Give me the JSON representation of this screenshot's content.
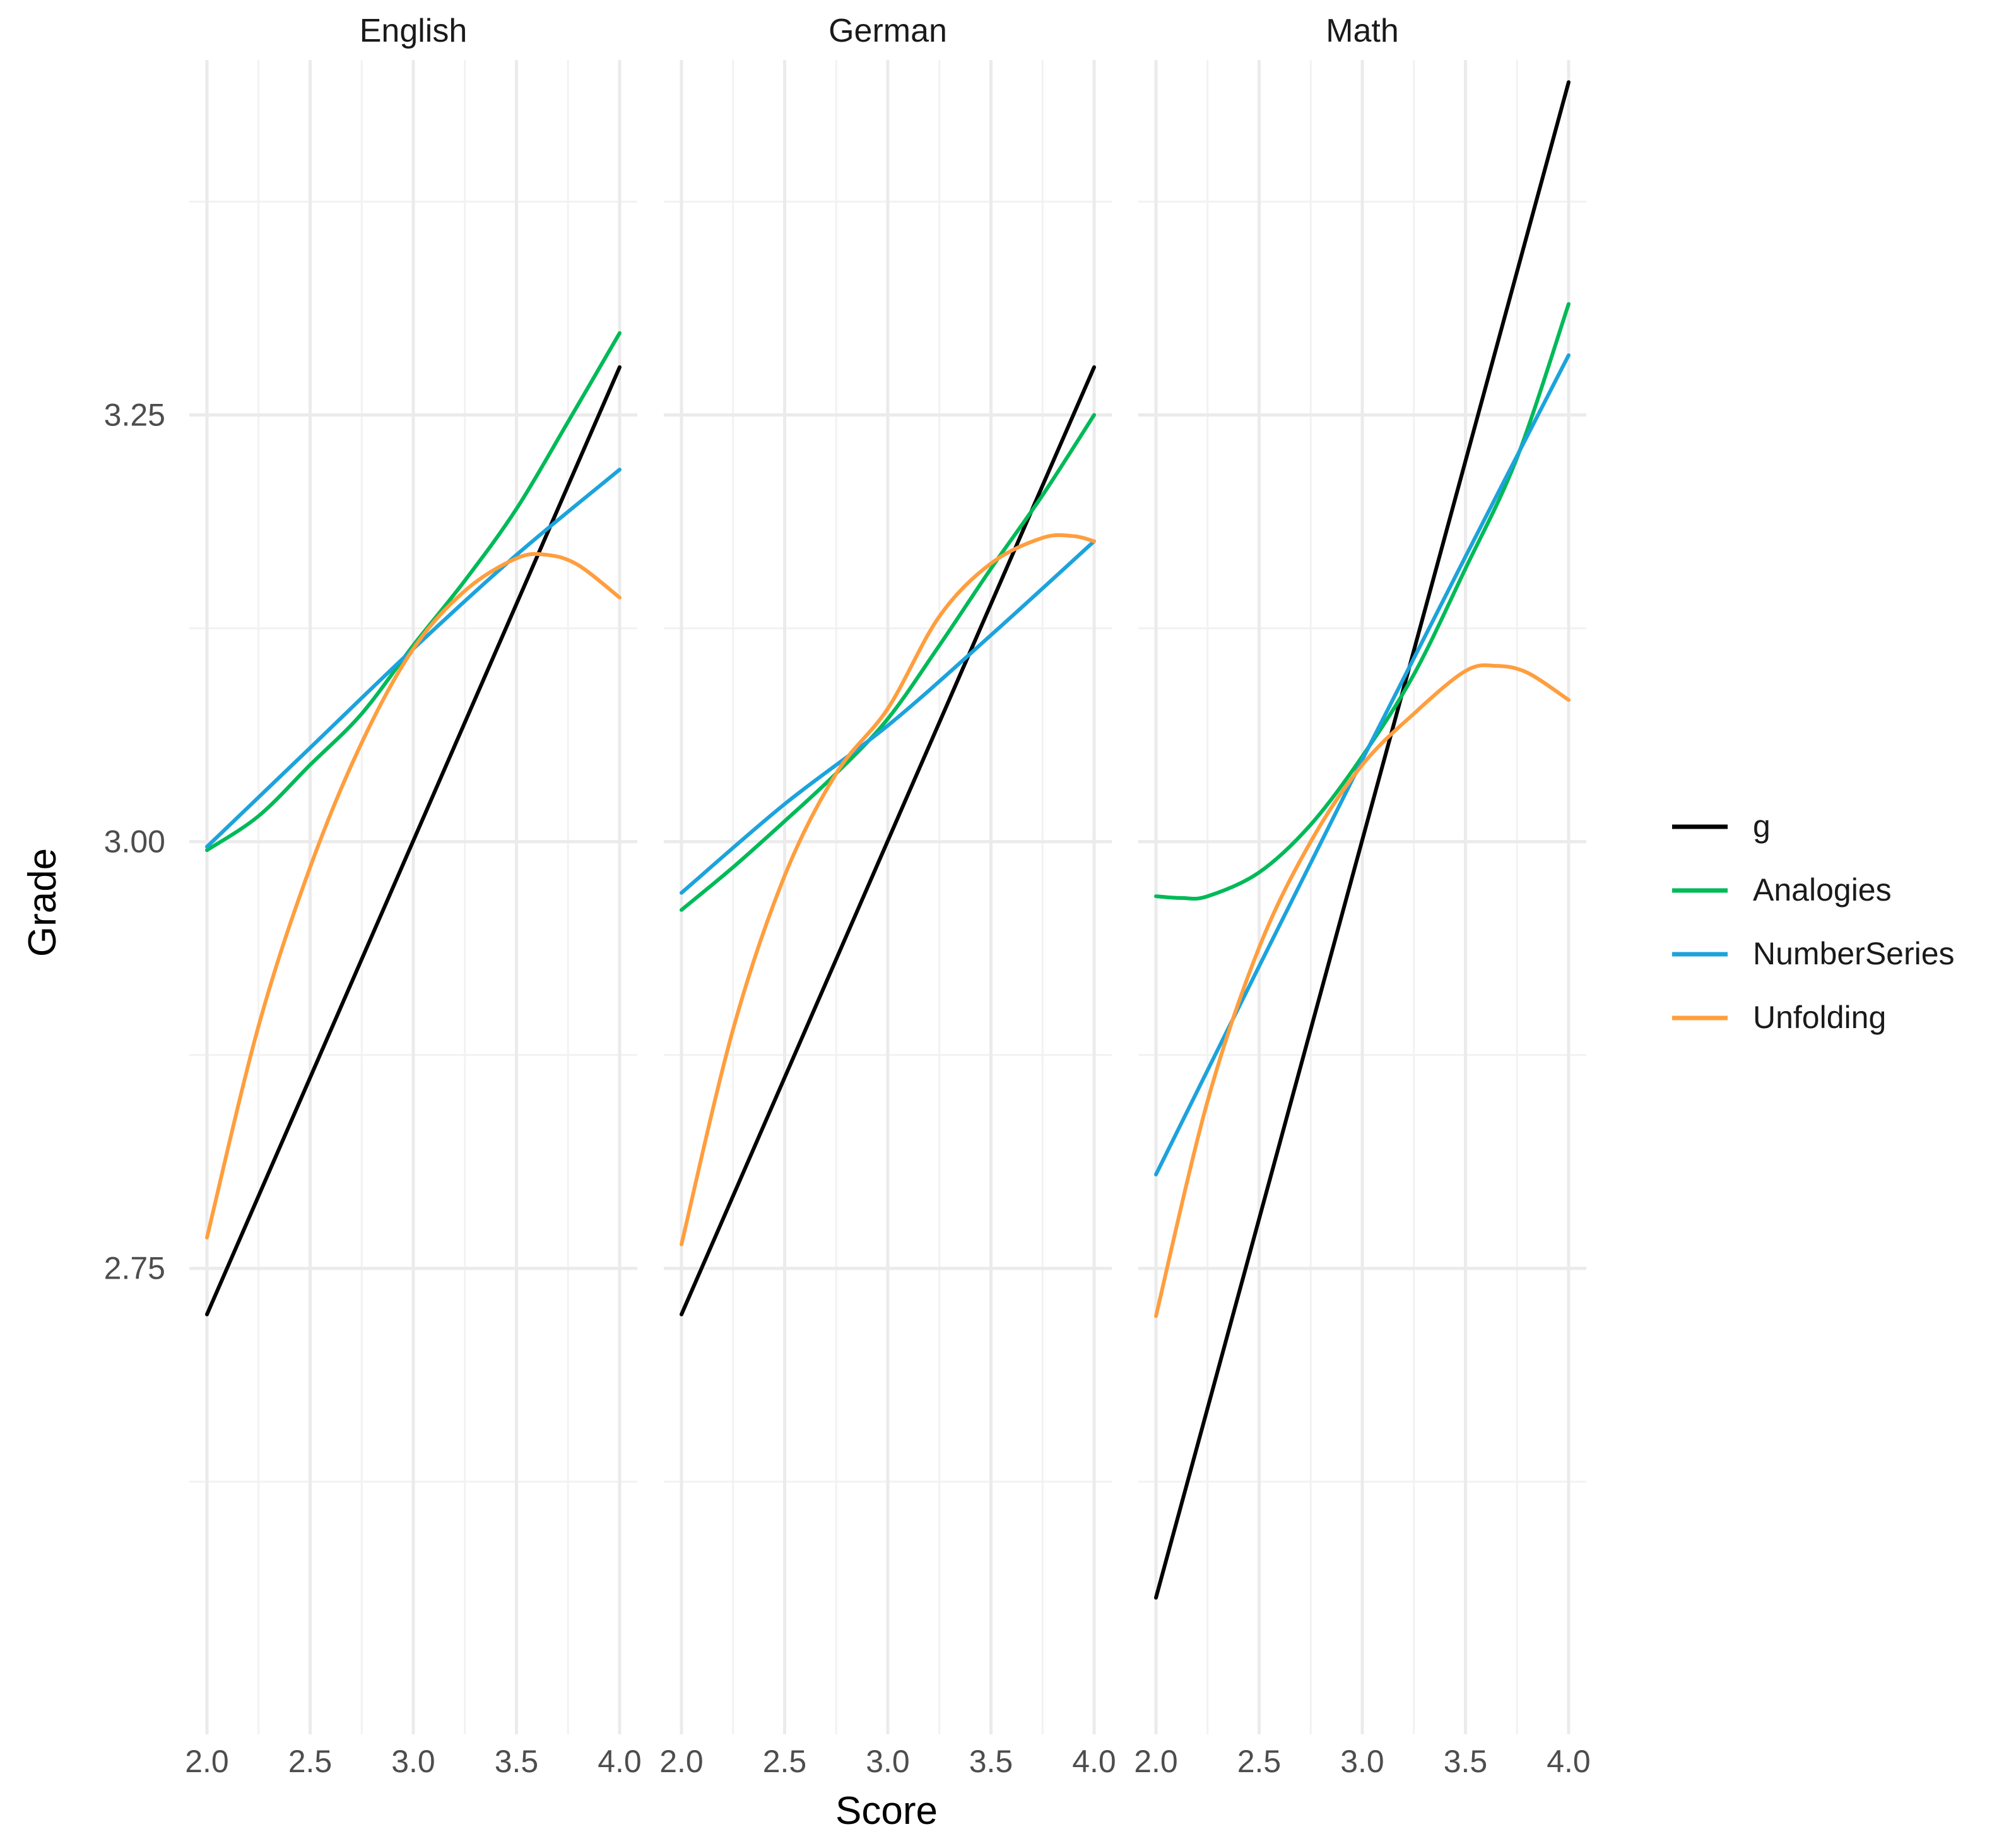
{
  "chart_data": {
    "type": "line",
    "xlabel": "Score",
    "ylabel": "Grade",
    "xlim": [
      2.0,
      4.0
    ],
    "ylim": [
      2.477,
      3.458
    ],
    "x_ticks": [
      "2.0",
      "2.5",
      "3.0",
      "3.5",
      "4.0"
    ],
    "y_ticks": [
      "2.75",
      "3.00",
      "3.25"
    ],
    "y_tick_values": [
      2.75,
      3.0,
      3.25
    ],
    "y_minor_values": [
      2.625,
      2.875,
      3.125,
      3.375
    ],
    "grid": true,
    "legend_position": "right",
    "legend": [
      {
        "name": "g",
        "color": "#000000"
      },
      {
        "name": "Analogies",
        "color": "#00BA58"
      },
      {
        "name": "NumberSeries",
        "color": "#1CA3DC"
      },
      {
        "name": "Unfolding",
        "color": "#FF9E3E"
      }
    ],
    "panels": [
      {
        "title": "English",
        "series": [
          {
            "name": "g",
            "x": [
              2.0,
              4.0
            ],
            "y": [
              2.723,
              3.278
            ]
          },
          {
            "name": "Analogies",
            "x": [
              2.0,
              2.25,
              2.5,
              2.75,
              3.0,
              3.25,
              3.5,
              3.75,
              4.0
            ],
            "y": [
              2.995,
              3.015,
              3.045,
              3.075,
              3.115,
              3.153,
              3.195,
              3.246,
              3.298
            ]
          },
          {
            "name": "NumberSeries",
            "x": [
              2.0,
              2.5,
              3.0,
              3.5,
              4.0
            ],
            "y": [
              2.997,
              3.055,
              3.113,
              3.168,
              3.218
            ]
          },
          {
            "name": "Unfolding",
            "x": [
              2.0,
              2.25,
              2.5,
              2.75,
              3.0,
              3.25,
              3.5,
              3.65,
              3.8,
              4.0
            ],
            "y": [
              2.768,
              2.892,
              2.985,
              3.058,
              3.113,
              3.147,
              3.166,
              3.168,
              3.162,
              3.143
            ]
          }
        ]
      },
      {
        "title": "German",
        "series": [
          {
            "name": "g",
            "x": [
              2.0,
              4.0
            ],
            "y": [
              2.723,
              3.278
            ]
          },
          {
            "name": "Analogies",
            "x": [
              2.0,
              2.25,
              2.5,
              2.75,
              3.0,
              3.25,
              3.5,
              3.75,
              4.0
            ],
            "y": [
              2.96,
              2.985,
              3.012,
              3.04,
              3.072,
              3.115,
              3.16,
              3.203,
              3.25
            ]
          },
          {
            "name": "NumberSeries",
            "x": [
              2.0,
              2.5,
              3.0,
              3.5,
              4.0
            ],
            "y": [
              2.97,
              3.022,
              3.068,
              3.121,
              3.176
            ]
          },
          {
            "name": "Unfolding",
            "x": [
              2.0,
              2.25,
              2.5,
              2.75,
              3.0,
              3.25,
              3.5,
              3.75,
              3.9,
              4.0
            ],
            "y": [
              2.764,
              2.89,
              2.98,
              3.04,
              3.078,
              3.132,
              3.163,
              3.178,
              3.179,
              3.176
            ]
          }
        ]
      },
      {
        "title": "Math",
        "series": [
          {
            "name": "g",
            "x": [
              2.0,
              4.0
            ],
            "y": [
              2.557,
              3.445
            ]
          },
          {
            "name": "Analogies",
            "x": [
              2.0,
              2.125,
              2.25,
              2.5,
              2.75,
              3.0,
              3.25,
              3.5,
              3.75,
              4.0
            ],
            "y": [
              2.968,
              2.967,
              2.968,
              2.982,
              3.01,
              3.05,
              3.098,
              3.16,
              3.225,
              3.315
            ]
          },
          {
            "name": "NumberSeries",
            "x": [
              2.0,
              2.5,
              3.0,
              3.5,
              4.0
            ],
            "y": [
              2.805,
              2.927,
              3.048,
              3.167,
              3.285
            ]
          },
          {
            "name": "Unfolding",
            "x": [
              2.0,
              2.25,
              2.5,
              2.75,
              3.0,
              3.25,
              3.5,
              3.65,
              3.8,
              4.0
            ],
            "y": [
              2.722,
              2.848,
              2.938,
              3.0,
              3.045,
              3.075,
              3.1,
              3.103,
              3.099,
              3.083
            ]
          }
        ]
      }
    ]
  }
}
